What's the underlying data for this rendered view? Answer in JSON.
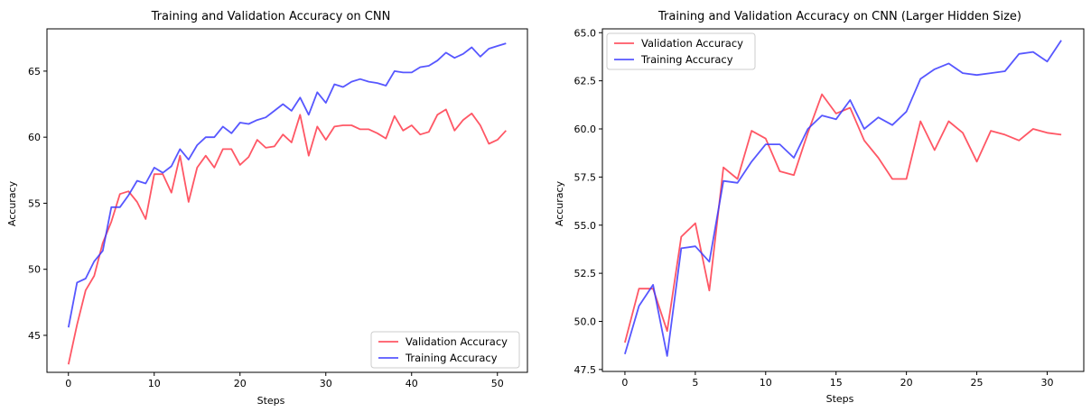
{
  "chart_data": [
    {
      "type": "line",
      "title": "Training and Validation Accuracy on CNN",
      "xlabel": "Steps",
      "ylabel": "Accuracy",
      "xlim": [
        -2.5,
        53.5
      ],
      "ylim": [
        42.2,
        68.2
      ],
      "xticks": [
        0,
        10,
        20,
        30,
        40,
        50
      ],
      "yticks": [
        45,
        50,
        55,
        60,
        65
      ],
      "legend_position": "bottom-right",
      "grid": false,
      "series": [
        {
          "name": "Validation Accuracy",
          "color": "#ff3a4a",
          "x": [
            0,
            1,
            2,
            3,
            4,
            5,
            6,
            7,
            8,
            9,
            10,
            11,
            12,
            13,
            14,
            15,
            16,
            17,
            18,
            19,
            20,
            21,
            22,
            23,
            24,
            25,
            26,
            27,
            28,
            29,
            30,
            31,
            32,
            33,
            34,
            35,
            36,
            37,
            38,
            39,
            40,
            41,
            42,
            43,
            44,
            45,
            46,
            47,
            48,
            49,
            50,
            51
          ],
          "y": [
            42.8,
            45.8,
            48.4,
            49.5,
            52.0,
            53.6,
            55.7,
            55.9,
            55.1,
            53.8,
            57.2,
            57.2,
            55.8,
            58.6,
            55.1,
            57.7,
            58.6,
            57.7,
            59.1,
            59.1,
            57.9,
            58.5,
            59.8,
            59.2,
            59.3,
            60.2,
            59.6,
            61.7,
            58.6,
            60.8,
            59.8,
            60.8,
            60.9,
            60.9,
            60.6,
            60.6,
            60.3,
            59.9,
            61.6,
            60.5,
            60.9,
            60.2,
            60.4,
            61.7,
            62.1,
            60.5,
            61.3,
            61.8,
            60.9,
            59.5,
            59.8,
            60.5
          ]
        },
        {
          "name": "Training Accuracy",
          "color": "#3a3aff",
          "x": [
            0,
            1,
            2,
            3,
            4,
            5,
            6,
            7,
            8,
            9,
            10,
            11,
            12,
            13,
            14,
            15,
            16,
            17,
            18,
            19,
            20,
            21,
            22,
            23,
            24,
            25,
            26,
            27,
            28,
            29,
            30,
            31,
            32,
            33,
            34,
            35,
            36,
            37,
            38,
            39,
            40,
            41,
            42,
            43,
            44,
            45,
            46,
            47,
            48,
            49,
            50,
            51
          ],
          "y": [
            45.6,
            49.0,
            49.3,
            50.6,
            51.4,
            54.7,
            54.7,
            55.6,
            56.7,
            56.5,
            57.7,
            57.3,
            57.8,
            59.1,
            58.3,
            59.4,
            60.0,
            60.0,
            60.8,
            60.3,
            61.1,
            61.0,
            61.3,
            61.5,
            62.0,
            62.5,
            62.0,
            63.0,
            61.7,
            63.4,
            62.6,
            64.0,
            63.8,
            64.2,
            64.4,
            64.2,
            64.1,
            63.9,
            65.0,
            64.9,
            64.9,
            65.3,
            65.4,
            65.8,
            66.4,
            66.0,
            66.3,
            66.8,
            66.1,
            66.7,
            66.9,
            67.1
          ]
        }
      ]
    },
    {
      "type": "line",
      "title": "Training and Validation Accuracy on CNN (Larger Hidden Size)",
      "xlabel": "Steps",
      "ylabel": "Accuracy",
      "xlim": [
        -1.6,
        32.6
      ],
      "ylim": [
        47.4,
        65.2
      ],
      "xticks": [
        0,
        5,
        10,
        15,
        20,
        25,
        30
      ],
      "yticks": [
        47.5,
        50.0,
        52.5,
        55.0,
        57.5,
        60.0,
        62.5,
        65.0
      ],
      "legend_position": "top-left",
      "grid": false,
      "series": [
        {
          "name": "Validation Accuracy",
          "color": "#ff3a4a",
          "x": [
            0,
            1,
            2,
            3,
            4,
            5,
            6,
            7,
            8,
            9,
            10,
            11,
            12,
            13,
            14,
            15,
            16,
            17,
            18,
            19,
            20,
            21,
            22,
            23,
            24,
            25,
            26,
            27,
            28,
            29,
            30,
            31
          ],
          "y": [
            48.9,
            51.7,
            51.7,
            49.5,
            54.4,
            55.1,
            51.6,
            58.0,
            57.4,
            59.9,
            59.5,
            57.8,
            57.6,
            59.8,
            61.8,
            60.8,
            61.1,
            59.4,
            58.5,
            57.4,
            57.4,
            60.4,
            58.9,
            60.4,
            59.8,
            58.3,
            59.9,
            59.7,
            59.4,
            60.0,
            59.8,
            59.7
          ]
        },
        {
          "name": "Training Accuracy",
          "color": "#3a3aff",
          "x": [
            0,
            1,
            2,
            3,
            4,
            5,
            6,
            7,
            8,
            9,
            10,
            11,
            12,
            13,
            14,
            15,
            16,
            17,
            18,
            19,
            20,
            21,
            22,
            23,
            24,
            25,
            26,
            27,
            28,
            29,
            30,
            31
          ],
          "y": [
            48.3,
            50.8,
            51.9,
            48.2,
            53.8,
            53.9,
            53.1,
            57.3,
            57.2,
            58.3,
            59.2,
            59.2,
            58.5,
            60.0,
            60.7,
            60.5,
            61.5,
            60.0,
            60.6,
            60.2,
            60.9,
            62.6,
            63.1,
            63.4,
            62.9,
            62.8,
            62.9,
            63.0,
            63.9,
            64.0,
            63.5,
            64.6
          ]
        }
      ]
    }
  ]
}
